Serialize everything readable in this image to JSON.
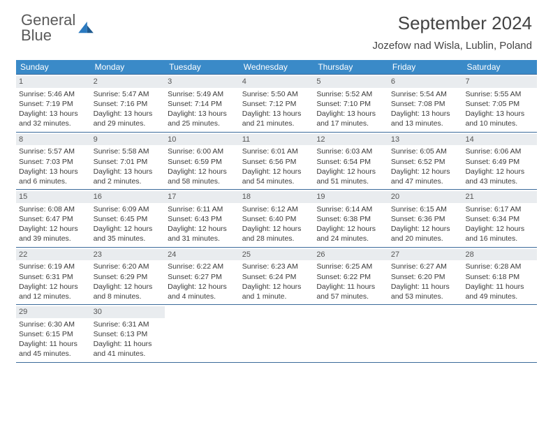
{
  "brand": {
    "word1": "General",
    "word2": "Blue"
  },
  "title": "September 2024",
  "location": "Jozefow nad Wisla, Lublin, Poland",
  "colors": {
    "header_bg": "#3a8ac8",
    "header_text": "#ffffff",
    "daynum_bg": "#e9ecef",
    "border": "#3a6a9a",
    "brand_gray": "#5a5a5a",
    "brand_blue": "#2b7ac0",
    "body_text": "#3a3a3a"
  },
  "daysOfWeek": [
    "Sunday",
    "Monday",
    "Tuesday",
    "Wednesday",
    "Thursday",
    "Friday",
    "Saturday"
  ],
  "weeks": [
    [
      {
        "n": "1",
        "sr": "5:46 AM",
        "ss": "7:19 PM",
        "dl": "13 hours and 32 minutes."
      },
      {
        "n": "2",
        "sr": "5:47 AM",
        "ss": "7:16 PM",
        "dl": "13 hours and 29 minutes."
      },
      {
        "n": "3",
        "sr": "5:49 AM",
        "ss": "7:14 PM",
        "dl": "13 hours and 25 minutes."
      },
      {
        "n": "4",
        "sr": "5:50 AM",
        "ss": "7:12 PM",
        "dl": "13 hours and 21 minutes."
      },
      {
        "n": "5",
        "sr": "5:52 AM",
        "ss": "7:10 PM",
        "dl": "13 hours and 17 minutes."
      },
      {
        "n": "6",
        "sr": "5:54 AM",
        "ss": "7:08 PM",
        "dl": "13 hours and 13 minutes."
      },
      {
        "n": "7",
        "sr": "5:55 AM",
        "ss": "7:05 PM",
        "dl": "13 hours and 10 minutes."
      }
    ],
    [
      {
        "n": "8",
        "sr": "5:57 AM",
        "ss": "7:03 PM",
        "dl": "13 hours and 6 minutes."
      },
      {
        "n": "9",
        "sr": "5:58 AM",
        "ss": "7:01 PM",
        "dl": "13 hours and 2 minutes."
      },
      {
        "n": "10",
        "sr": "6:00 AM",
        "ss": "6:59 PM",
        "dl": "12 hours and 58 minutes."
      },
      {
        "n": "11",
        "sr": "6:01 AM",
        "ss": "6:56 PM",
        "dl": "12 hours and 54 minutes."
      },
      {
        "n": "12",
        "sr": "6:03 AM",
        "ss": "6:54 PM",
        "dl": "12 hours and 51 minutes."
      },
      {
        "n": "13",
        "sr": "6:05 AM",
        "ss": "6:52 PM",
        "dl": "12 hours and 47 minutes."
      },
      {
        "n": "14",
        "sr": "6:06 AM",
        "ss": "6:49 PM",
        "dl": "12 hours and 43 minutes."
      }
    ],
    [
      {
        "n": "15",
        "sr": "6:08 AM",
        "ss": "6:47 PM",
        "dl": "12 hours and 39 minutes."
      },
      {
        "n": "16",
        "sr": "6:09 AM",
        "ss": "6:45 PM",
        "dl": "12 hours and 35 minutes."
      },
      {
        "n": "17",
        "sr": "6:11 AM",
        "ss": "6:43 PM",
        "dl": "12 hours and 31 minutes."
      },
      {
        "n": "18",
        "sr": "6:12 AM",
        "ss": "6:40 PM",
        "dl": "12 hours and 28 minutes."
      },
      {
        "n": "19",
        "sr": "6:14 AM",
        "ss": "6:38 PM",
        "dl": "12 hours and 24 minutes."
      },
      {
        "n": "20",
        "sr": "6:15 AM",
        "ss": "6:36 PM",
        "dl": "12 hours and 20 minutes."
      },
      {
        "n": "21",
        "sr": "6:17 AM",
        "ss": "6:34 PM",
        "dl": "12 hours and 16 minutes."
      }
    ],
    [
      {
        "n": "22",
        "sr": "6:19 AM",
        "ss": "6:31 PM",
        "dl": "12 hours and 12 minutes."
      },
      {
        "n": "23",
        "sr": "6:20 AM",
        "ss": "6:29 PM",
        "dl": "12 hours and 8 minutes."
      },
      {
        "n": "24",
        "sr": "6:22 AM",
        "ss": "6:27 PM",
        "dl": "12 hours and 4 minutes."
      },
      {
        "n": "25",
        "sr": "6:23 AM",
        "ss": "6:24 PM",
        "dl": "12 hours and 1 minute."
      },
      {
        "n": "26",
        "sr": "6:25 AM",
        "ss": "6:22 PM",
        "dl": "11 hours and 57 minutes."
      },
      {
        "n": "27",
        "sr": "6:27 AM",
        "ss": "6:20 PM",
        "dl": "11 hours and 53 minutes."
      },
      {
        "n": "28",
        "sr": "6:28 AM",
        "ss": "6:18 PM",
        "dl": "11 hours and 49 minutes."
      }
    ],
    [
      {
        "n": "29",
        "sr": "6:30 AM",
        "ss": "6:15 PM",
        "dl": "11 hours and 45 minutes."
      },
      {
        "n": "30",
        "sr": "6:31 AM",
        "ss": "6:13 PM",
        "dl": "11 hours and 41 minutes."
      },
      null,
      null,
      null,
      null,
      null
    ]
  ],
  "labels": {
    "sunrise": "Sunrise:",
    "sunset": "Sunset:",
    "daylight": "Daylight:"
  }
}
